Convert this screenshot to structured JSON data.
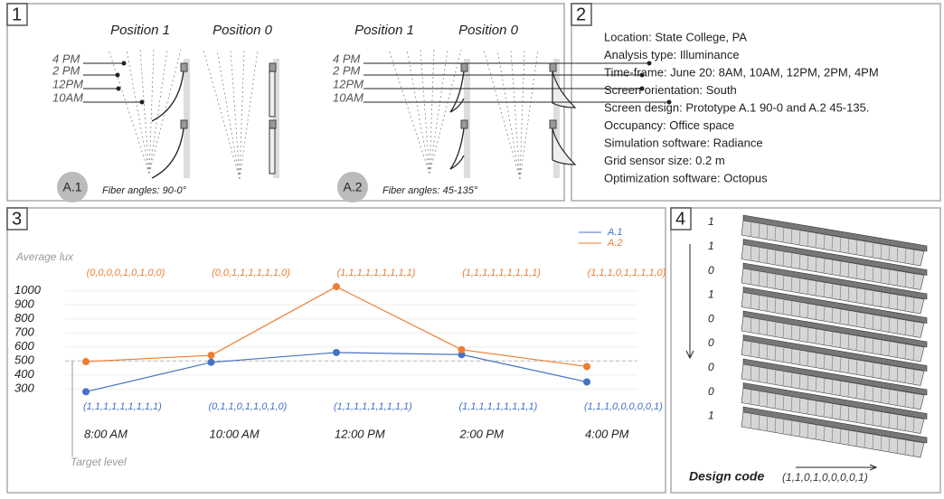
{
  "panel_labels": [
    "1",
    "2",
    "3",
    "4"
  ],
  "panel1": {
    "headings": [
      "Position 1",
      "Position 0",
      "Position 1",
      "Position 0"
    ],
    "times": [
      "4 PM",
      "2 PM",
      "12PM",
      "10AM"
    ],
    "prototypes": [
      {
        "name": "A.1",
        "caption": "Fiber angles: 90-0°"
      },
      {
        "name": "A.2",
        "caption": "Fiber angles: 45-135°"
      }
    ]
  },
  "panel2": {
    "lines": [
      "Location: State College, PA",
      "Analysis type: Illuminance",
      "Time-frame: June 20: 8AM, 10AM, 12PM, 2PM, 4PM",
      "Screen orientation: South",
      "Screen design: Prototype A.1 90-0 and  A.2 45-135.",
      "Occupancy: Office space",
      "Simulation software: Radiance",
      "Grid sensor size: 0.2 m",
      "Optimization software: Octopus"
    ]
  },
  "chart_data": {
    "type": "line",
    "ylabel": "Average lux",
    "categories": [
      "8:00 AM",
      "10:00 AM",
      "12:00 PM",
      "2:00 PM",
      "4:00 PM"
    ],
    "series": [
      {
        "name": "A.1",
        "color": "#4472c4",
        "values": [
          280,
          490,
          560,
          545,
          350
        ],
        "codes": [
          "(1,1,1,1,1,1,1,1,1)",
          "(0,1,1,0,1,1,0,1,0)",
          "(1,1,1,1,1,1,1,1,1)",
          "(1,1,1,1,1,1,1,1,1)",
          "(1,1,1,0,0,0,0,0,1)"
        ]
      },
      {
        "name": "A.2",
        "color": "#ed7d31",
        "values": [
          495,
          540,
          1030,
          580,
          460
        ],
        "codes": [
          "(0,0,0,0,1,0,1,0,0)",
          "(0,0,1,1,1,1,1,1,0)",
          "(1,1,1,1,1,1,1,1,1)",
          "(1,1,1,1,1,1,1,1,1)",
          "(1,1,1,0,1,1,1,1,0)"
        ]
      }
    ],
    "target": {
      "label": "Target level",
      "value": 500
    },
    "ylim": [
      250,
      1050
    ],
    "yticks": [
      300,
      400,
      500,
      600,
      700,
      800,
      900,
      1000
    ],
    "grid": true,
    "legend": "top-right"
  },
  "panel4": {
    "digits": [
      "1",
      "1",
      "0",
      "1",
      "0",
      "0",
      "0",
      "0",
      "1"
    ],
    "axis_label": "Design code",
    "code": "(1,1,0,1,0,0,0,0,1)"
  }
}
